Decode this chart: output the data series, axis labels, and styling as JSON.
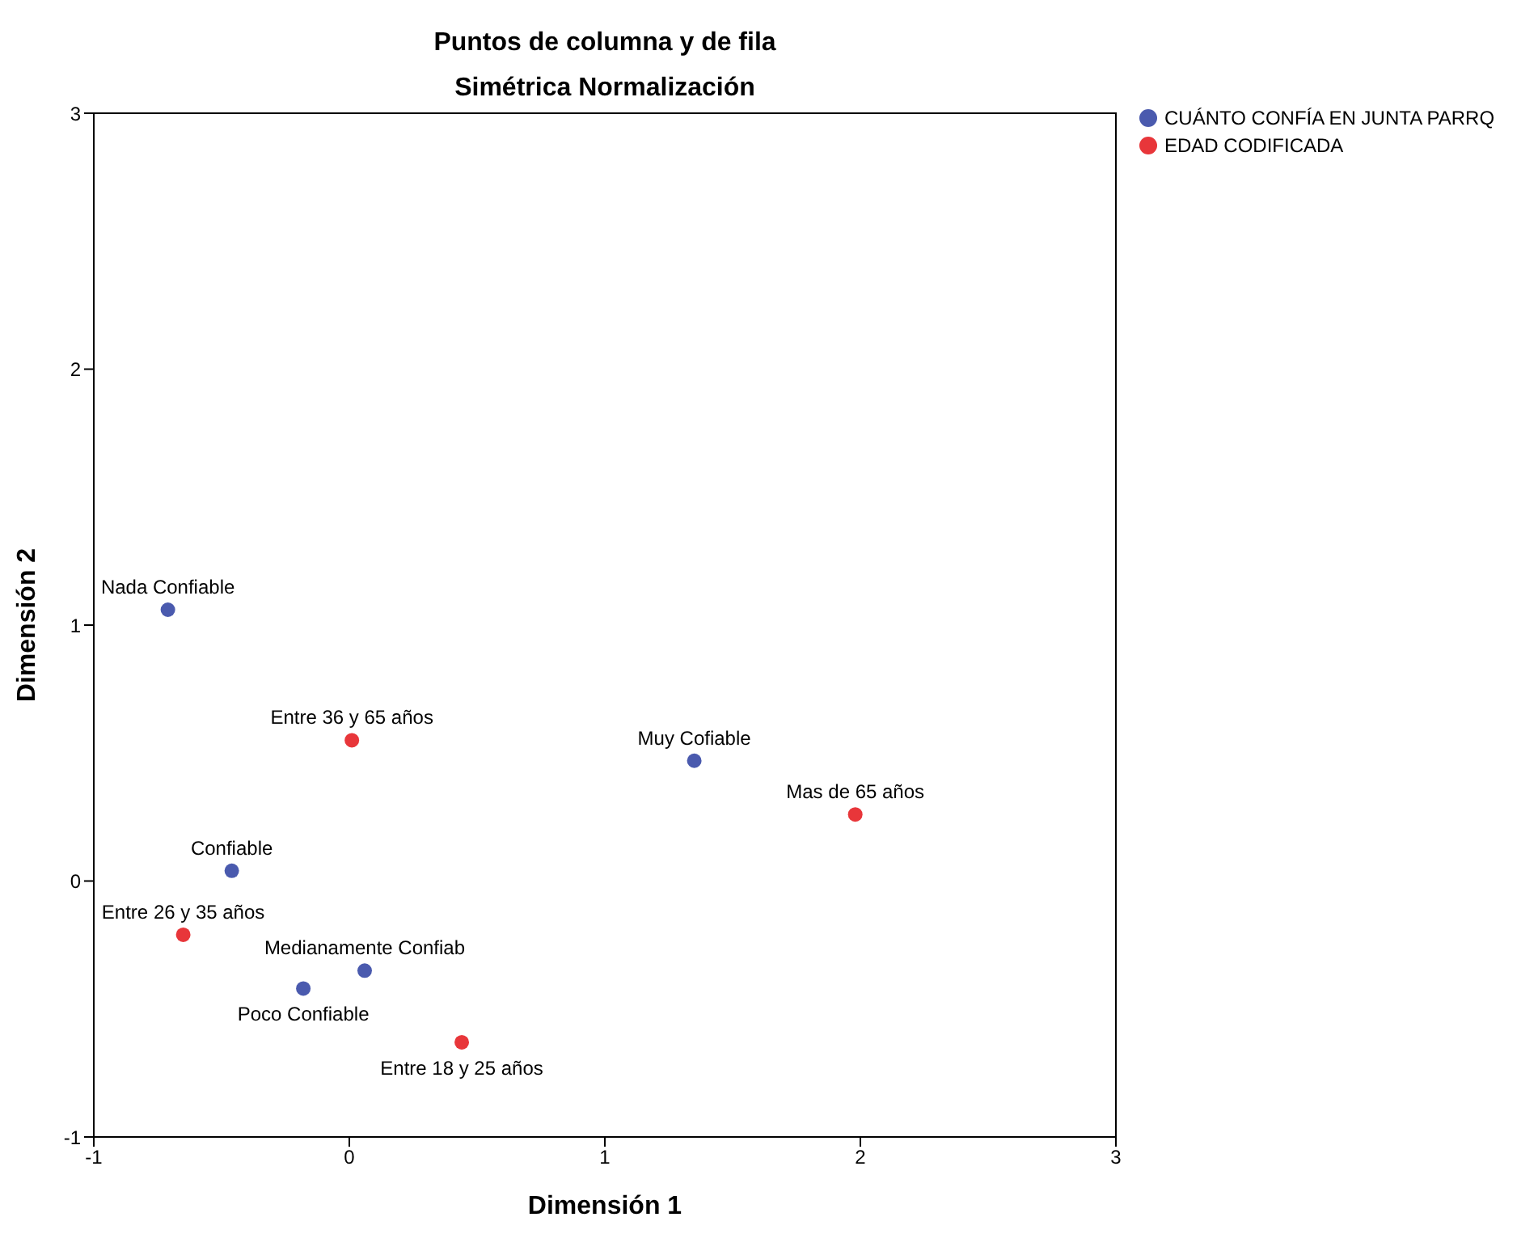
{
  "chart_data": {
    "type": "scatter",
    "title": "Puntos de columna y de fila",
    "subtitle": "Simétrica Normalización",
    "xlabel": "Dimensión 1",
    "ylabel": "Dimensión 2",
    "xlim": [
      -1,
      3
    ],
    "xticks": [
      -1,
      0,
      1,
      2,
      3
    ],
    "ylim": [
      -1,
      3
    ],
    "yticks": [
      -1,
      0,
      1,
      2,
      3
    ],
    "grid": false,
    "legend": "top right",
    "marker": "circle",
    "series": [
      {
        "name": "CUÁNTO CONFÍA EN JUNTA PARRQ",
        "color": "#4a5aae",
        "x": [
          -0.71,
          1.35,
          -0.46,
          0.06,
          -0.18
        ],
        "values": [
          1.06,
          0.47,
          0.04,
          -0.35,
          -0.42
        ]
      },
      {
        "name": "EDAD CODIFICADA",
        "color": "#e8363a",
        "x": [
          0.01,
          1.98,
          -0.65,
          0.44
        ],
        "values": [
          0.55,
          0.26,
          -0.21,
          -0.63
        ]
      }
    ],
    "annotations": [
      {
        "text": "Nada Confiable",
        "x": -0.71,
        "y": 1.06
      },
      {
        "text": "Muy Cofiable",
        "x": 1.35,
        "y": 0.47
      },
      {
        "text": "Confiable",
        "x": -0.46,
        "y": 0.04
      },
      {
        "text": "Medianamente Confiab",
        "x": 0.06,
        "y": -0.35
      },
      {
        "text": "Poco Confiable",
        "x": -0.18,
        "y": -0.42
      },
      {
        "text": "Entre 36 y 65 años",
        "x": 0.01,
        "y": 0.55
      },
      {
        "text": "Mas de 65 años",
        "x": 1.98,
        "y": 0.26
      },
      {
        "text": "Entre 26 y 35 años",
        "x": -0.65,
        "y": -0.21
      },
      {
        "text": "Entre 18 y 25 años",
        "x": 0.44,
        "y": -0.63
      }
    ]
  }
}
